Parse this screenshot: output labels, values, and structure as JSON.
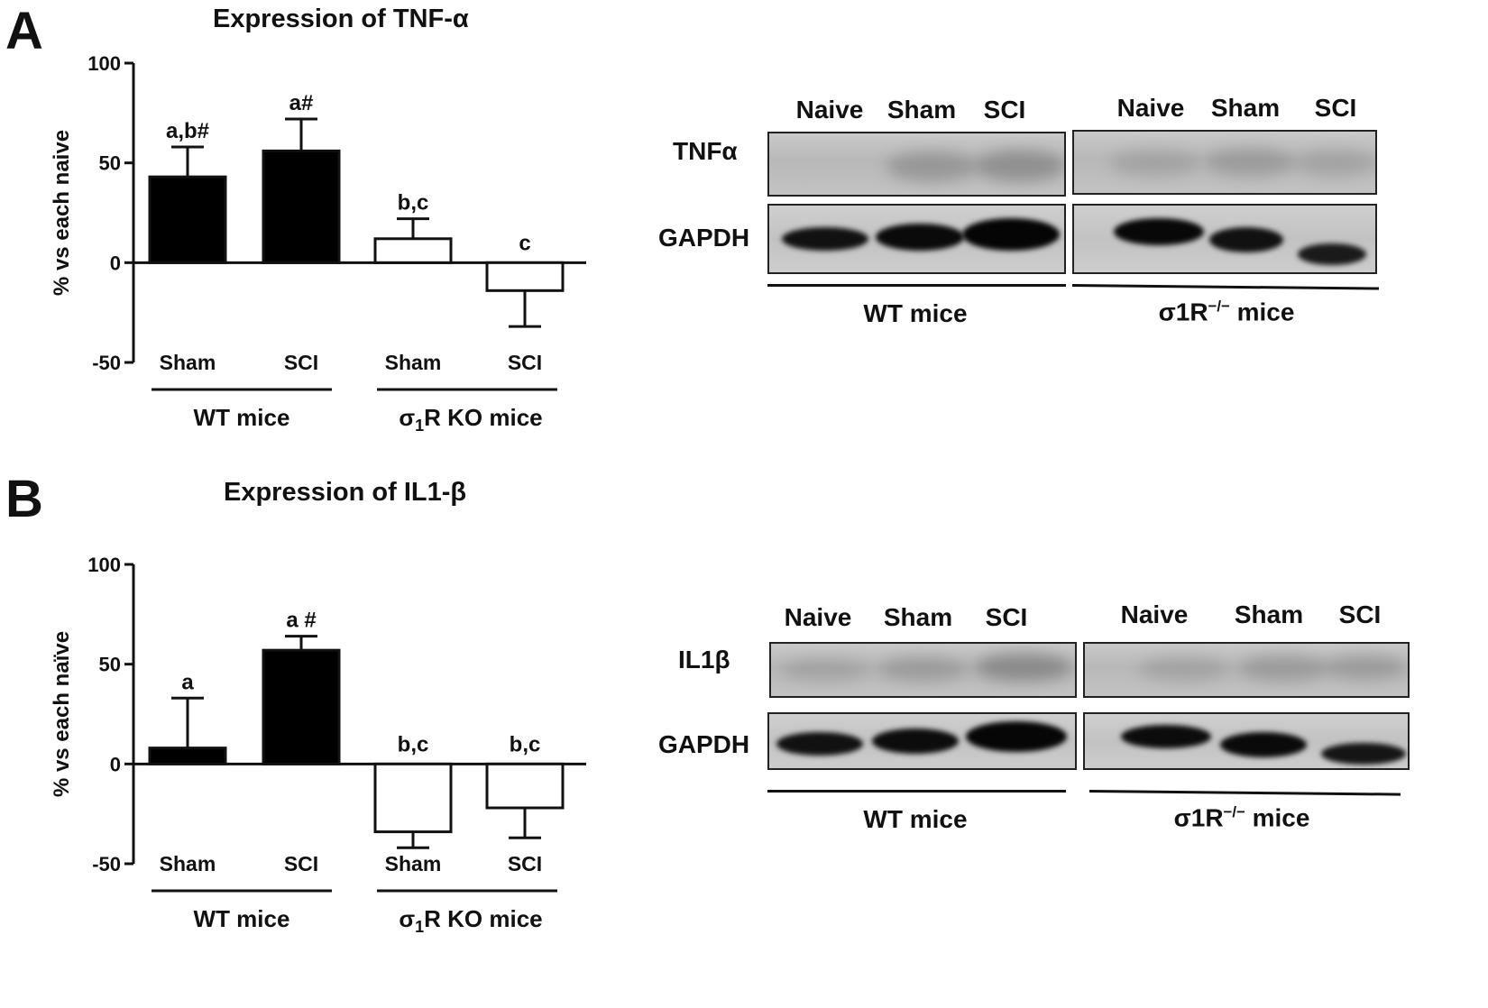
{
  "chart_data": [
    {
      "panel": "A",
      "type": "bar",
      "title": "Expression of TNF-α",
      "ylabel": "% vs each naive",
      "ylim": [
        -50,
        100
      ],
      "yticks": [
        "100",
        "50",
        "0",
        "-50"
      ],
      "categories": [
        "Sham",
        "SCI",
        "Sham",
        "SCI"
      ],
      "groups": [
        {
          "label": "WT mice",
          "label_sub": ""
        },
        {
          "label_pre": "σ",
          "label_sub": "1",
          "label_post": "R KO mice"
        }
      ],
      "values": [
        43,
        56,
        12,
        -14
      ],
      "errors": [
        15,
        16,
        10,
        18
      ],
      "fills": [
        "#000000",
        "#000000",
        "#ffffff",
        "#ffffff"
      ],
      "annotations": [
        "a,b#",
        "a#",
        "b,c",
        "c"
      ]
    },
    {
      "panel": "B",
      "type": "bar",
      "title": "Expression of IL1-β",
      "ylabel": "% vs each naïve",
      "ylim": [
        -50,
        100
      ],
      "yticks": [
        "100",
        "50",
        "0",
        "-50"
      ],
      "categories": [
        "Sham",
        "SCI",
        "Sham",
        "SCI"
      ],
      "groups": [
        {
          "label": "WT mice",
          "label_sub": ""
        },
        {
          "label_pre": "σ",
          "label_sub": "1",
          "label_post": "R KO mice"
        }
      ],
      "values": [
        8,
        57,
        -34,
        -22
      ],
      "errors": [
        25,
        7,
        8,
        15
      ],
      "fills": [
        "#000000",
        "#000000",
        "#ffffff",
        "#ffffff"
      ],
      "annotations": [
        "a",
        "a #",
        "b,c",
        "b,c"
      ]
    }
  ],
  "blots": [
    {
      "panel": "A",
      "lanes_wt": [
        "Naive",
        "Sham",
        "SCI"
      ],
      "lanes_ko": [
        "Naive",
        "Sham",
        "SCI"
      ],
      "protein_label": "TNFα",
      "control_label": "GAPDH",
      "group_wt": "WT mice",
      "group_ko_pre": "σ1R",
      "group_ko_sup": "−/−",
      "group_ko_post": " mice"
    },
    {
      "panel": "B",
      "lanes_wt": [
        "Naive",
        "Sham",
        "SCI"
      ],
      "lanes_ko": [
        "Naive",
        "Sham",
        "SCI"
      ],
      "protein_label": "IL1β",
      "control_label": "GAPDH",
      "group_wt": "WT mice",
      "group_ko_pre": "σ1R",
      "group_ko_sup": "−/−",
      "group_ko_post": " mice"
    }
  ]
}
